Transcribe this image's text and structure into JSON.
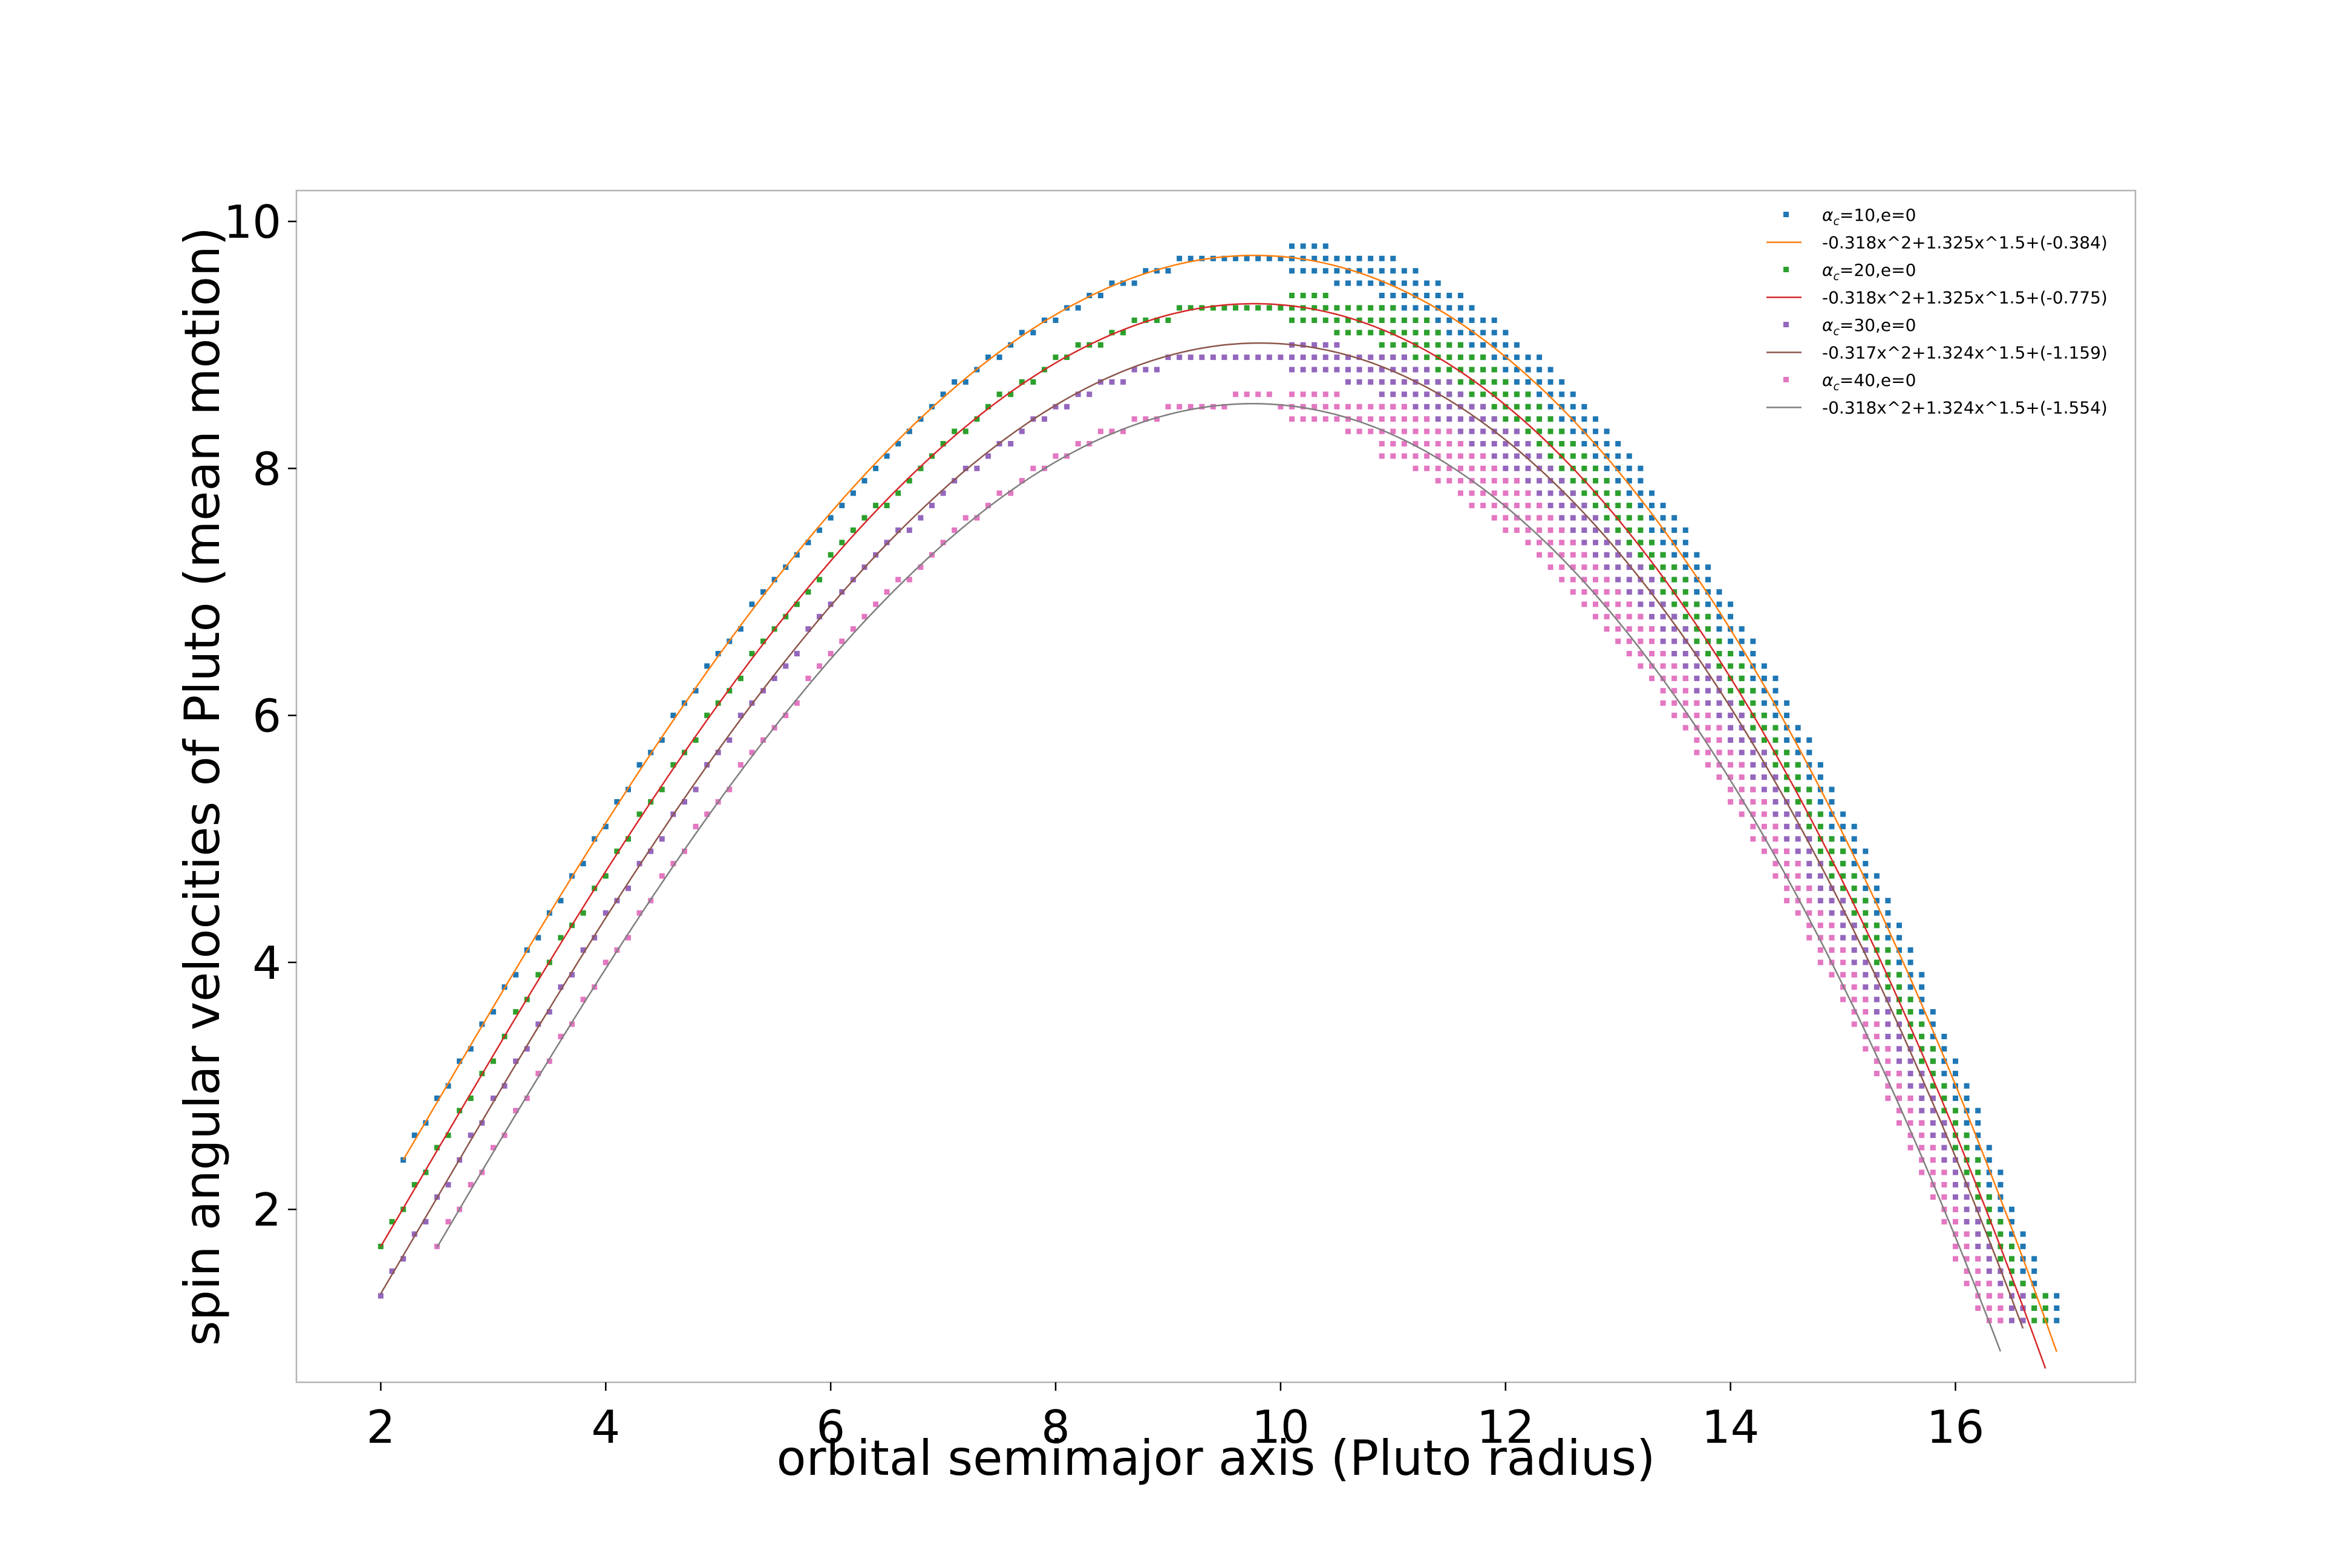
{
  "chart_data": {
    "type": "scatter",
    "xlabel": "orbital semimajor axis (Pluto radius)",
    "ylabel": "spin angular velocities of Pluto (mean motion)",
    "xlim": [
      1.25,
      17.6
    ],
    "ylim": [
      0.6,
      10.25
    ],
    "xticks": [
      2,
      4,
      6,
      8,
      10,
      12,
      14,
      16
    ],
    "yticks": [
      2,
      4,
      6,
      8,
      10
    ],
    "grid": false,
    "legend_position": "top-right",
    "series": [
      {
        "name": "α_c=10,e=0",
        "legend_text": "=10,e=0",
        "kind": "scatter",
        "color": "#1f77b4",
        "fit_offset": -0.384,
        "x_start": 2.2,
        "x_end": 16.9,
        "spread_left": 0,
        "spread_right": 2,
        "points_sample": [
          [
            2.2,
            2.4
          ],
          [
            2.4,
            2.7
          ],
          [
            4.0,
            5.3
          ],
          [
            6.0,
            7.7
          ],
          [
            8.0,
            9.3
          ],
          [
            9.2,
            9.8
          ],
          [
            10.0,
            9.8
          ],
          [
            12.0,
            8.9
          ],
          [
            14.0,
            6.3
          ],
          [
            15.0,
            5.0
          ],
          [
            16.0,
            3.3
          ],
          [
            16.9,
            1.1
          ]
        ]
      },
      {
        "name": "-0.318x^2+1.325x^1.5+(-0.384)",
        "kind": "line",
        "color": "#ff7f0e",
        "a": -0.318,
        "b": 1.325,
        "c": -0.384,
        "x_start": 2.2,
        "x_end": 16.9
      },
      {
        "name": "α_c=20,e=0",
        "legend_text": "=20,e=0",
        "kind": "scatter",
        "color": "#2ca02c",
        "fit_offset": -0.775,
        "x_start": 2.0,
        "x_end": 16.8,
        "spread_left": 0,
        "spread_right": 2,
        "points_sample": [
          [
            2.0,
            1.7
          ],
          [
            2.2,
            2.0
          ],
          [
            4.0,
            4.9
          ],
          [
            6.0,
            7.3
          ],
          [
            8.0,
            8.9
          ],
          [
            9.0,
            9.4
          ],
          [
            10.0,
            9.4
          ],
          [
            12.0,
            8.5
          ],
          [
            14.0,
            6.0
          ],
          [
            15.0,
            4.6
          ],
          [
            16.0,
            2.9
          ],
          [
            16.8,
            1.2
          ]
        ]
      },
      {
        "name": "-0.318x^2+1.325x^1.5+(-0.775)",
        "kind": "line",
        "color": "#d62728",
        "a": -0.318,
        "b": 1.325,
        "c": -0.775,
        "x_start": 2.0,
        "x_end": 16.8
      },
      {
        "name": "α_c=30,e=0",
        "legend_text": "=30,e=0",
        "kind": "scatter",
        "color": "#9467bd",
        "fit_offset": -1.159,
        "x_start": 2.0,
        "x_end": 16.6,
        "spread_left": 0,
        "spread_right": 2,
        "points_sample": [
          [
            2.0,
            1.3
          ],
          [
            2.2,
            1.6
          ],
          [
            4.0,
            4.5
          ],
          [
            6.0,
            6.9
          ],
          [
            8.0,
            8.5
          ],
          [
            9.0,
            8.9
          ],
          [
            10.0,
            9.0
          ],
          [
            12.0,
            8.1
          ],
          [
            14.0,
            5.6
          ],
          [
            15.0,
            4.2
          ],
          [
            16.0,
            2.5
          ],
          [
            16.6,
            1.1
          ]
        ]
      },
      {
        "name": "-0.317x^2+1.324x^1.5+(-1.159)",
        "kind": "line",
        "color": "#8c564b",
        "a": -0.317,
        "b": 1.324,
        "c": -1.159,
        "x_start": 2.0,
        "x_end": 16.6
      },
      {
        "name": "α_c=40,e=0",
        "legend_text": "=40,e=0",
        "kind": "scatter",
        "color": "#e377c2",
        "fit_offset": -1.554,
        "x_start": 2.5,
        "x_end": 16.4,
        "spread_left": 0,
        "spread_right": 2,
        "points_sample": [
          [
            2.5,
            1.7
          ],
          [
            2.7,
            2.0
          ],
          [
            4.0,
            4.1
          ],
          [
            6.0,
            6.5
          ],
          [
            8.0,
            8.1
          ],
          [
            9.0,
            8.5
          ],
          [
            10.0,
            8.6
          ],
          [
            12.0,
            7.7
          ],
          [
            14.0,
            5.2
          ],
          [
            15.0,
            3.8
          ],
          [
            16.0,
            2.0
          ],
          [
            16.4,
            1.1
          ]
        ]
      },
      {
        "name": "-0.318x^2+1.324x^1.5+(-1.554)",
        "kind": "line",
        "color": "#7f7f7f",
        "a": -0.318,
        "b": 1.324,
        "c": -1.554,
        "x_start": 2.5,
        "x_end": 16.4
      }
    ]
  }
}
